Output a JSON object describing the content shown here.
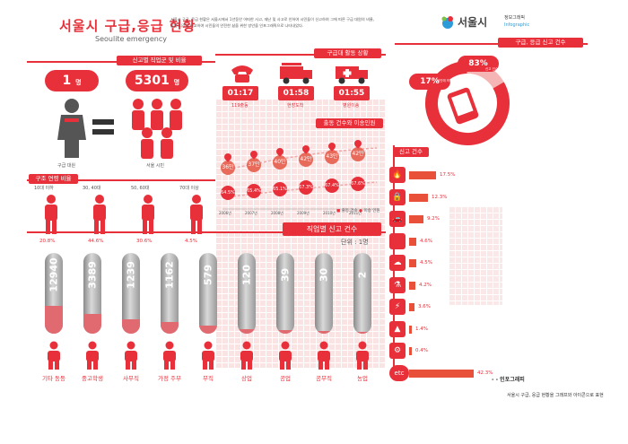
{
  "header": {
    "title": "서울시 구급,응급 현황",
    "subtitle": "Seoulite emergency",
    "intro": "서울시 구급, 응급 현황은 서울시에서 1년동안 어떠한 사고, 재난 및 사고로 인하여 시민들이 신고하여 그에 따른 구급 대원의 비율, 출동 시간을 비교하여 시민들의 안전한 삶을 위한 방안을 인포그래픽으로 나타내었다."
  },
  "logo": {
    "main": "서울시",
    "sub": "정보그래픽",
    "en": "Infographic"
  },
  "ratio_section": {
    "tag": "신고별 직업군 및 비율",
    "left_value": "1",
    "left_unit": "명",
    "left_label": "구급 대원",
    "right_value": "5301",
    "right_unit": "명",
    "right_label": "서울 시민"
  },
  "dispatch_section": {
    "tag": "구급대 활동 상황",
    "times": [
      {
        "time": "01:17",
        "label": "119출동"
      },
      {
        "time": "01:58",
        "label": "현장도착"
      },
      {
        "time": "01:55",
        "label": "병원이송"
      }
    ]
  },
  "yearly_section": {
    "tag": "출동 건수와 이송인원",
    "years": [
      "2006년",
      "2007년",
      "2008년",
      "2009년",
      "2010년",
      "2011년"
    ],
    "dispatch": [
      "36만",
      "37만",
      "40만",
      "42만",
      "43만",
      "42만"
    ],
    "transport": [
      "64.5%",
      "65.4%",
      "65.1%",
      "67.3%",
      "67.4%",
      "67.6%"
    ],
    "legend_a": "출동 건수",
    "legend_b": "이송 인원"
  },
  "report_total": {
    "tag": "구급, 응급 신고 건수",
    "pct_a": "17%",
    "pct_a_label": "타인에 의한 신고",
    "pct_b": "83%",
    "pct_b_label": "신고 건수"
  },
  "age_section": {
    "tag": "구조 연령 비율",
    "groups": [
      {
        "label": "10대 이하",
        "pct": "20.8%"
      },
      {
        "label": "30, 40대",
        "pct": "44.6%"
      },
      {
        "label": "50, 60대",
        "pct": "30.6%"
      },
      {
        "label": "70대 이상",
        "pct": "4.5%"
      }
    ]
  },
  "occupation_section": {
    "tag": "직업별 신고 건수",
    "unit": "단위 : 1명",
    "items": [
      {
        "label": "기타 동등",
        "value": "12940",
        "fill": 0.35
      },
      {
        "label": "중고학생",
        "value": "3389",
        "fill": 0.25
      },
      {
        "label": "사무직",
        "value": "1239",
        "fill": 0.18
      },
      {
        "label": "가정 주부",
        "value": "1162",
        "fill": 0.15
      },
      {
        "label": "무직",
        "value": "579",
        "fill": 0.1
      },
      {
        "label": "상업",
        "value": "120",
        "fill": 0.06
      },
      {
        "label": "공업",
        "value": "39",
        "fill": 0.04
      },
      {
        "label": "공무직",
        "value": "30",
        "fill": 0.03
      },
      {
        "label": "농업",
        "value": "2",
        "fill": 0.02
      }
    ]
  },
  "category_section": {
    "tag": "신고 건수",
    "items": [
      {
        "icon": "🔥",
        "value": "17.5%",
        "level": 0.175
      },
      {
        "icon": "🔒",
        "value": "12.3%",
        "level": 0.123
      },
      {
        "icon": "🚗",
        "value": "9.2%",
        "level": 0.092
      },
      {
        "icon": "",
        "value": "4.6%",
        "level": 0.046
      },
      {
        "icon": "☁",
        "value": "4.5%",
        "level": 0.045
      },
      {
        "icon": "⚗",
        "value": "4.2%",
        "level": 0.042
      },
      {
        "icon": "⚡",
        "value": "3.6%",
        "level": 0.036
      },
      {
        "icon": "▲",
        "value": "1.4%",
        "level": 0.014
      },
      {
        "icon": "⚙",
        "value": "0.4%",
        "level": 0.004
      },
      {
        "icon": "etc",
        "value": "42.3%",
        "level": 0.423
      }
    ]
  },
  "footer": {
    "caption_title": "- - 인포그래피",
    "caption_text": "서울시 구급, 응급 현황을 그래프와 아이콘으로 표현"
  }
}
